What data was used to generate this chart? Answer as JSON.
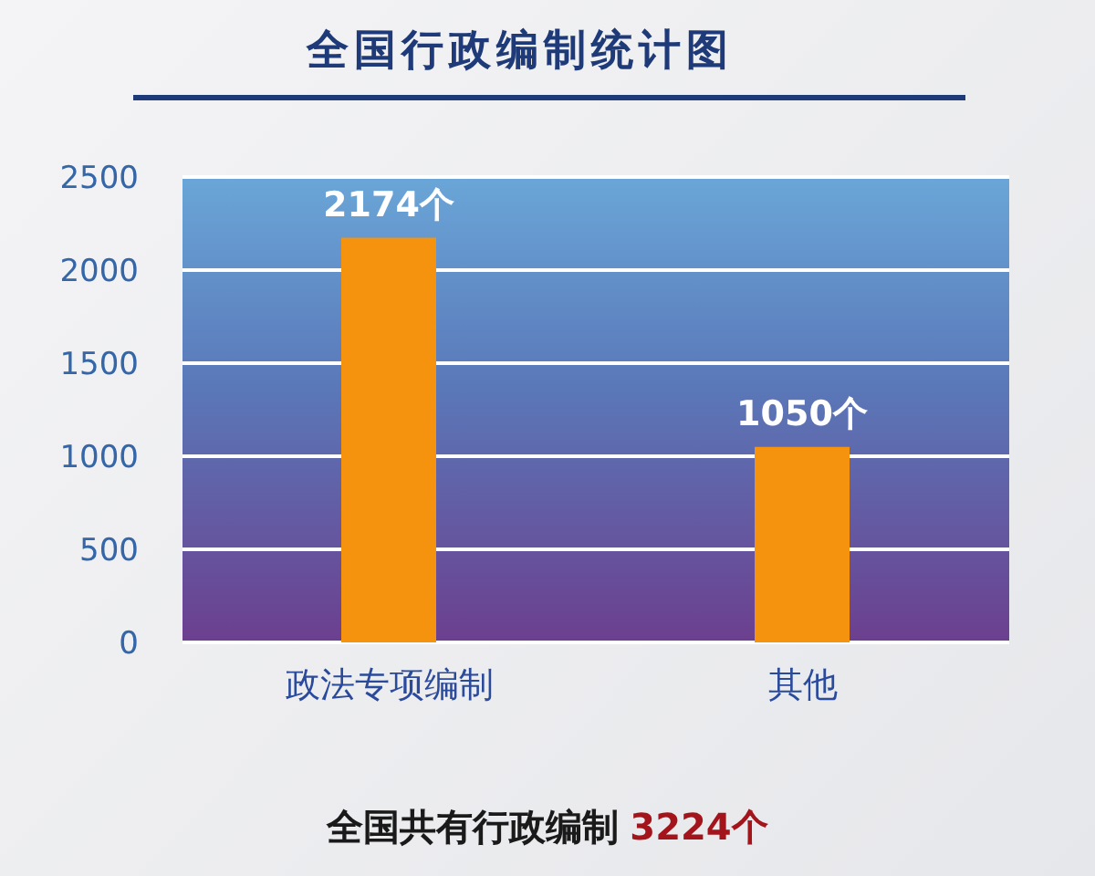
{
  "chart_data": {
    "type": "bar",
    "title": "全国行政编制统计图",
    "categories": [
      "政法专项编制",
      "其他"
    ],
    "values": [
      2174,
      1050
    ],
    "value_labels": [
      "2174个",
      "1050个"
    ],
    "color": "#f5930f",
    "ylim": [
      0,
      2500
    ],
    "yticks": [
      0,
      500,
      1000,
      1500,
      2000,
      2500
    ],
    "grid": "y",
    "annotations": [
      "全国共有行政编制",
      "3224个"
    ]
  }
}
